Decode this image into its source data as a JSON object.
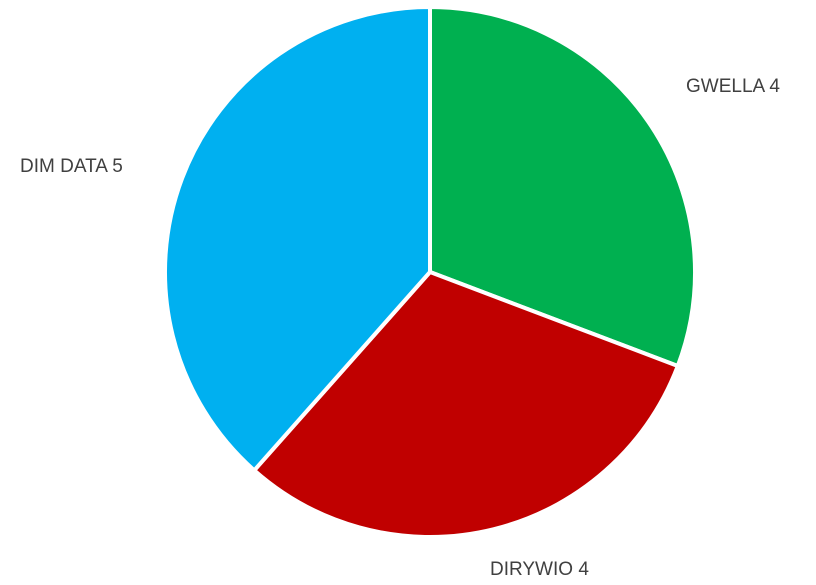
{
  "chart_data": {
    "type": "pie",
    "categories": [
      "GWELLA",
      "DIRYWIO",
      "DIM DATA"
    ],
    "values": [
      4,
      4,
      5
    ],
    "colors": [
      "#00B050",
      "#C00000",
      "#00B0F0"
    ],
    "data_labels": [
      "GWELLA 4",
      "DIRYWIO 4",
      "DIM DATA 5"
    ],
    "start_angle_deg": 0,
    "direction": "clockwise",
    "legend": "none"
  }
}
